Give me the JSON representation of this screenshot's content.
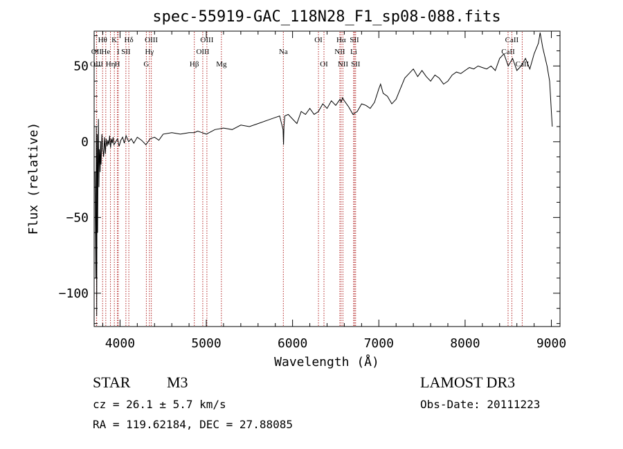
{
  "chart_data": {
    "type": "line",
    "title": "spec-55919-GAC_118N28_F1_sp08-088.fits",
    "xlabel": "Wavelength (Å)",
    "ylabel": "Flux (relative)",
    "xlim": [
      3700,
      9100
    ],
    "ylim": [
      -122,
      73
    ],
    "x_ticks": [
      4000,
      5000,
      6000,
      7000,
      8000,
      9000
    ],
    "x_tick_labels": [
      "4000",
      "5000",
      "6000",
      "7000",
      "8000",
      "9000"
    ],
    "y_ticks": [
      50,
      0,
      -50,
      -100
    ],
    "y_tick_labels": [
      "50",
      "0",
      "−50",
      "−100"
    ],
    "series": [
      {
        "name": "spectrum",
        "color": "#000000",
        "x": [
          3710,
          3720,
          3725,
          3730,
          3735,
          3740,
          3745,
          3750,
          3755,
          3760,
          3765,
          3770,
          3775,
          3780,
          3790,
          3800,
          3810,
          3820,
          3830,
          3840,
          3850,
          3860,
          3870,
          3880,
          3890,
          3900,
          3910,
          3920,
          3930,
          3950,
          3970,
          3990,
          4010,
          4030,
          4050,
          4070,
          4100,
          4130,
          4160,
          4200,
          4250,
          4300,
          4350,
          4400,
          4450,
          4500,
          4600,
          4700,
          4800,
          4861,
          4900,
          4950,
          5000,
          5100,
          5200,
          5300,
          5400,
          5500,
          5600,
          5700,
          5800,
          5850,
          5890,
          5895,
          5900,
          5910,
          5950,
          6000,
          6050,
          6100,
          6150,
          6200,
          6250,
          6300,
          6350,
          6400,
          6450,
          6500,
          6550,
          6563,
          6580,
          6600,
          6650,
          6700,
          6750,
          6800,
          6850,
          6900,
          6950,
          7000,
          7020,
          7050,
          7100,
          7150,
          7200,
          7250,
          7300,
          7350,
          7400,
          7450,
          7500,
          7550,
          7600,
          7650,
          7700,
          7750,
          7800,
          7850,
          7900,
          7950,
          8000,
          8050,
          8100,
          8150,
          8200,
          8250,
          8300,
          8350,
          8400,
          8450,
          8500,
          8550,
          8600,
          8650,
          8700,
          8750,
          8800,
          8850,
          8870,
          8900,
          8950,
          8980,
          9000,
          9010
        ],
        "y": [
          -20,
          -90,
          10,
          -115,
          5,
          -60,
          -15,
          15,
          -30,
          -5,
          -10,
          -20,
          0,
          -15,
          5,
          -5,
          -10,
          3,
          -8,
          2,
          -3,
          1,
          -2,
          4,
          -4,
          2,
          -1,
          3,
          -2,
          0,
          2,
          -3,
          1,
          3,
          -1,
          4,
          0,
          2,
          -1,
          3,
          1,
          -2,
          2,
          3,
          1,
          5,
          6,
          5,
          6,
          6,
          7,
          6,
          5,
          8,
          9,
          8,
          11,
          10,
          12,
          14,
          16,
          17,
          8,
          -2,
          10,
          17,
          18,
          15,
          12,
          20,
          18,
          22,
          18,
          20,
          25,
          22,
          27,
          24,
          28,
          26,
          29,
          27,
          23,
          18,
          20,
          25,
          24,
          22,
          26,
          35,
          38,
          32,
          30,
          25,
          28,
          35,
          42,
          45,
          48,
          43,
          47,
          43,
          40,
          44,
          42,
          38,
          40,
          44,
          46,
          45,
          47,
          49,
          48,
          50,
          49,
          48,
          50,
          47,
          55,
          58,
          50,
          55,
          47,
          50,
          55,
          48,
          58,
          65,
          72,
          62,
          50,
          40,
          20,
          10
        ]
      }
    ],
    "lines": [
      {
        "label": "Hθ",
        "x": 3798,
        "row": 0
      },
      {
        "label": "OII",
        "x": 3727,
        "row": 1
      },
      {
        "label": "OIII",
        "x": 3729,
        "row": 2
      },
      {
        "label": "He",
        "x": 3835,
        "row": 1
      },
      {
        "label": "Hη",
        "x": 3889,
        "row": 2
      },
      {
        "label": "K",
        "x": 3934,
        "row": 0
      },
      {
        "label": "H",
        "x": 3969,
        "row": 2
      },
      {
        "label": "I",
        "x": 3980,
        "row": 1
      },
      {
        "label": "SII",
        "x": 4068,
        "row": 1
      },
      {
        "label": "Hδ",
        "x": 4102,
        "row": 0
      },
      {
        "label": "OIII",
        "x": 4363,
        "row": 0
      },
      {
        "label": "Hγ",
        "x": 4341,
        "row": 1
      },
      {
        "label": "G",
        "x": 4305,
        "row": 2
      },
      {
        "label": "Hβ",
        "x": 4861,
        "row": 2
      },
      {
        "label": "OIII",
        "x": 4959,
        "row": 1
      },
      {
        "label": "OIII",
        "x": 5007,
        "row": 0
      },
      {
        "label": "Mg",
        "x": 5175,
        "row": 2
      },
      {
        "label": "Na",
        "x": 5893,
        "row": 1
      },
      {
        "label": "OI",
        "x": 6300,
        "row": 0
      },
      {
        "label": "OI",
        "x": 6364,
        "row": 2
      },
      {
        "label": "Hα",
        "x": 6563,
        "row": 0
      },
      {
        "label": "NII",
        "x": 6548,
        "row": 1
      },
      {
        "label": "NII",
        "x": 6584,
        "row": 2
      },
      {
        "label": "SII",
        "x": 6717,
        "row": 0
      },
      {
        "label": "Li",
        "x": 6708,
        "row": 1
      },
      {
        "label": "SII",
        "x": 6731,
        "row": 2
      },
      {
        "label": "CaII",
        "x": 8542,
        "row": 0
      },
      {
        "label": "CaII",
        "x": 8498,
        "row": 1
      },
      {
        "label": "CaII",
        "x": 8662,
        "row": 2
      }
    ]
  },
  "footer": {
    "class_label": "STAR",
    "subclass": "M3",
    "survey": "LAMOST DR3",
    "redshift": "cz = 26.1 ± 5.7 km/s",
    "obs_date": "Obs-Date: 20111223",
    "coords": "RA = 119.62184, DEC =  27.88085"
  }
}
